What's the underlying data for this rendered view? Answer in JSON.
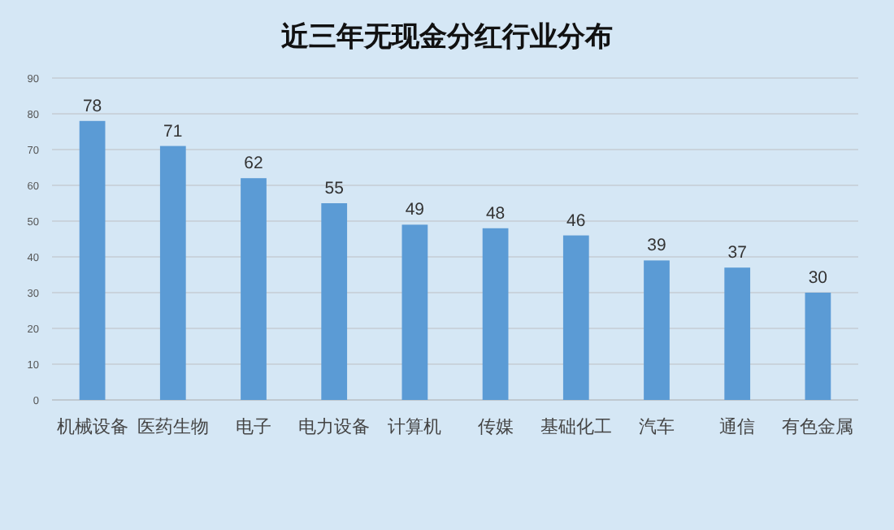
{
  "chart_data": {
    "type": "bar",
    "title": "近三年无现金分红行业分布",
    "categories": [
      "机械设备",
      "医药生物",
      "电子",
      "电力设备",
      "计算机",
      "传媒",
      "基础化工",
      "汽车",
      "通信",
      "有色金属"
    ],
    "values": [
      78,
      71,
      62,
      55,
      49,
      48,
      46,
      39,
      37,
      30
    ],
    "color": "#5b9bd5",
    "ylim": [
      0,
      90
    ],
    "yticks": [
      0,
      10,
      20,
      30,
      40,
      50,
      60,
      70,
      80,
      90
    ],
    "grid": "y",
    "data_labels": true
  }
}
